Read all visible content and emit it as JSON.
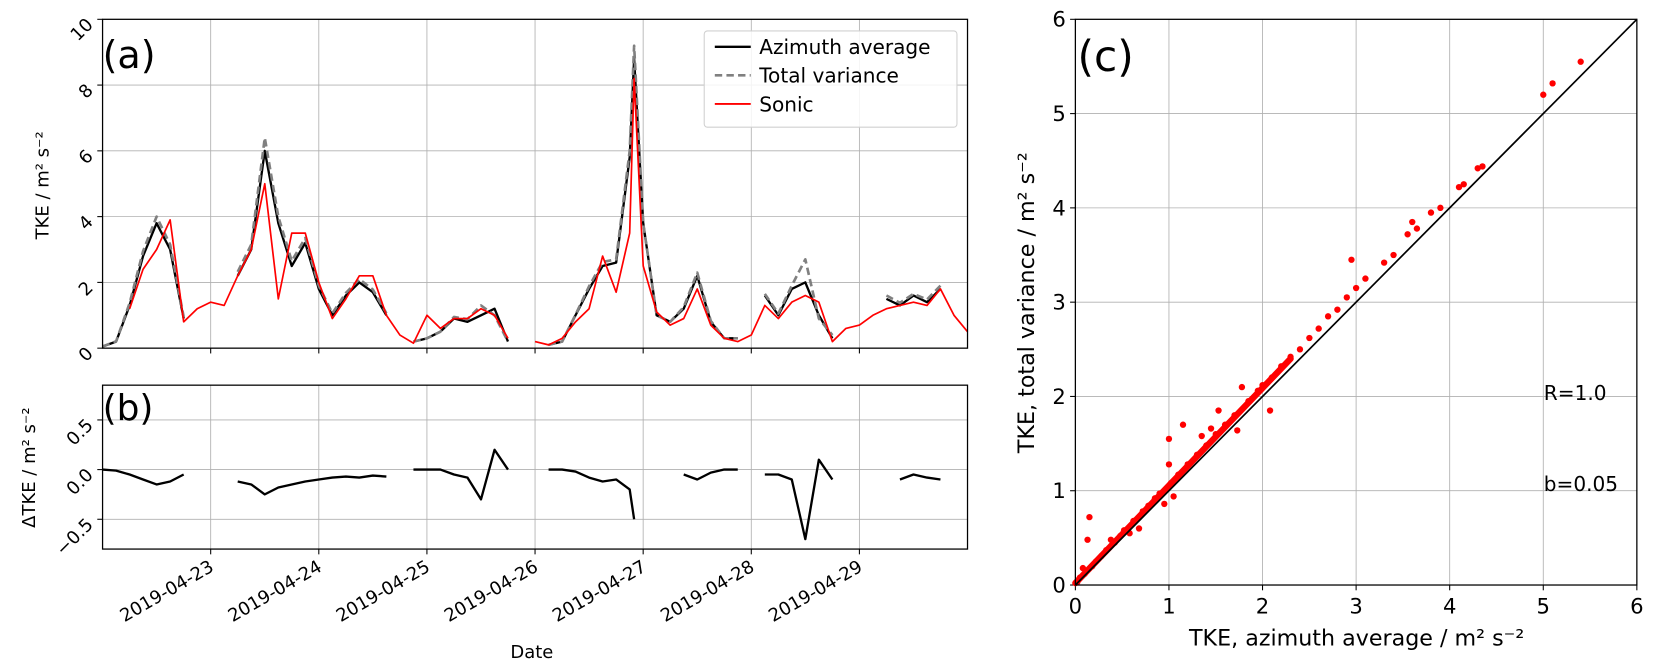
{
  "chart_data": [
    {
      "panel": "(a)",
      "type": "line",
      "ylabel": "TKE / m² s⁻²",
      "ylim": [
        0,
        10
      ],
      "yticks": [
        "0",
        "2",
        "4",
        "6",
        "8",
        "10"
      ],
      "xlim": [
        "2019-04-22T00:00",
        "2019-04-30T00:00"
      ],
      "grid": true,
      "legend_position": "top-right",
      "x": [
        "2019-04-22T00:00",
        "2019-04-22T03:00",
        "2019-04-22T06:00",
        "2019-04-22T09:00",
        "2019-04-22T12:00",
        "2019-04-22T15:00",
        "2019-04-22T18:00",
        "2019-04-22T21:00",
        "2019-04-23T00:00",
        "2019-04-23T03:00",
        "2019-04-23T06:00",
        "2019-04-23T09:00",
        "2019-04-23T12:00",
        "2019-04-23T15:00",
        "2019-04-23T18:00",
        "2019-04-23T21:00",
        "2019-04-24T00:00",
        "2019-04-24T03:00",
        "2019-04-24T06:00",
        "2019-04-24T09:00",
        "2019-04-24T12:00",
        "2019-04-24T15:00",
        "2019-04-24T18:00",
        "2019-04-24T21:00",
        "2019-04-25T00:00",
        "2019-04-25T03:00",
        "2019-04-25T06:00",
        "2019-04-25T09:00",
        "2019-04-25T12:00",
        "2019-04-25T15:00",
        "2019-04-25T18:00",
        "2019-04-25T21:00",
        "2019-04-26T00:00",
        "2019-04-26T03:00",
        "2019-04-26T06:00",
        "2019-04-26T09:00",
        "2019-04-26T12:00",
        "2019-04-26T15:00",
        "2019-04-26T18:00",
        "2019-04-26T21:00",
        "2019-04-26T22:00",
        "2019-04-27T00:00",
        "2019-04-27T03:00",
        "2019-04-27T06:00",
        "2019-04-27T09:00",
        "2019-04-27T12:00",
        "2019-04-27T15:00",
        "2019-04-27T18:00",
        "2019-04-27T21:00",
        "2019-04-28T00:00",
        "2019-04-28T03:00",
        "2019-04-28T06:00",
        "2019-04-28T09:00",
        "2019-04-28T12:00",
        "2019-04-28T15:00",
        "2019-04-28T18:00",
        "2019-04-28T21:00",
        "2019-04-29T00:00",
        "2019-04-29T03:00",
        "2019-04-29T06:00",
        "2019-04-29T09:00",
        "2019-04-29T12:00",
        "2019-04-29T15:00",
        "2019-04-29T18:00",
        "2019-04-29T21:00",
        "2019-04-30T00:00"
      ],
      "series": [
        {
          "name": "Azimuth average",
          "color": "#000000",
          "style": "solid",
          "values": [
            0.05,
            0.2,
            1.3,
            2.8,
            3.8,
            3.0,
            0.9,
            null,
            null,
            null,
            2.2,
            3.0,
            6.0,
            3.8,
            2.5,
            3.2,
            1.8,
            1.0,
            1.6,
            2.0,
            1.7,
            1.0,
            null,
            0.2,
            0.3,
            0.5,
            0.9,
            0.8,
            1.0,
            1.2,
            0.2,
            null,
            null,
            0.1,
            0.2,
            1.0,
            1.8,
            2.5,
            2.6,
            5.8,
            8.8,
            3.8,
            1.0,
            0.8,
            1.2,
            2.2,
            0.8,
            0.3,
            0.3,
            null,
            1.6,
            1.0,
            1.8,
            2.0,
            1.0,
            0.3,
            null,
            null,
            null,
            1.5,
            1.3,
            1.6,
            1.4,
            1.8,
            null,
            null
          ]
        },
        {
          "name": "Total variance",
          "color": "#808080",
          "style": "dashed",
          "values": [
            0.05,
            0.21,
            1.37,
            2.95,
            4.0,
            3.15,
            0.95,
            null,
            null,
            null,
            2.32,
            3.15,
            6.4,
            4.0,
            2.65,
            3.35,
            1.9,
            1.06,
            1.68,
            2.1,
            1.78,
            1.06,
            null,
            0.2,
            0.3,
            0.5,
            0.95,
            0.88,
            1.3,
            1.0,
            0.2,
            null,
            null,
            0.1,
            0.2,
            1.02,
            1.88,
            2.62,
            2.7,
            6.0,
            9.2,
            3.8,
            1.0,
            0.8,
            1.25,
            2.3,
            0.83,
            0.3,
            0.3,
            null,
            1.65,
            1.05,
            1.9,
            2.7,
            0.9,
            0.4,
            null,
            null,
            null,
            1.6,
            1.38,
            1.65,
            1.48,
            1.9,
            null,
            null
          ]
        },
        {
          "name": "Sonic",
          "color": "#ff0000",
          "style": "solid",
          "values": [
            null,
            null,
            1.2,
            2.4,
            3.0,
            3.9,
            0.8,
            1.2,
            1.4,
            1.3,
            2.2,
            3.0,
            5.0,
            1.5,
            3.5,
            3.5,
            2.0,
            0.9,
            1.5,
            2.2,
            2.2,
            1.0,
            0.4,
            0.15,
            1.0,
            0.6,
            0.9,
            0.9,
            1.2,
            1.0,
            0.3,
            null,
            0.2,
            0.1,
            0.3,
            0.8,
            1.2,
            2.8,
            1.7,
            3.5,
            8.2,
            2.5,
            1.1,
            0.7,
            0.9,
            1.8,
            0.7,
            0.3,
            0.2,
            0.4,
            1.3,
            0.9,
            1.4,
            1.6,
            1.4,
            0.2,
            0.6,
            0.7,
            1.0,
            1.2,
            1.3,
            1.4,
            1.3,
            1.8,
            1.0,
            0.5
          ]
        }
      ]
    },
    {
      "panel": "(b)",
      "type": "line",
      "ylabel": "ΔTKE / m² s⁻²",
      "xlabel": "Date",
      "ylim": [
        -0.8,
        0.85
      ],
      "yticks": [
        "−0.5",
        "0.0",
        "0.5"
      ],
      "xticks": [
        "2019-04-23",
        "2019-04-24",
        "2019-04-25",
        "2019-04-26",
        "2019-04-27",
        "2019-04-28",
        "2019-04-29"
      ],
      "grid": true,
      "series": [
        {
          "color": "#000000",
          "values": [
            0.0,
            -0.01,
            -0.05,
            -0.1,
            -0.15,
            -0.12,
            -0.05,
            null,
            null,
            null,
            -0.12,
            -0.15,
            -0.25,
            -0.18,
            -0.15,
            -0.12,
            -0.1,
            -0.08,
            -0.07,
            -0.08,
            -0.06,
            -0.07,
            null,
            0.0,
            0.0,
            0.0,
            -0.05,
            -0.08,
            -0.3,
            0.2,
            0.0,
            null,
            null,
            0.0,
            0.0,
            -0.02,
            -0.08,
            -0.12,
            -0.1,
            -0.2,
            -0.5,
            null,
            null,
            null,
            -0.05,
            -0.1,
            -0.03,
            0.0,
            0.0,
            null,
            -0.05,
            -0.05,
            -0.1,
            -0.7,
            0.1,
            -0.1,
            null,
            null,
            null,
            null,
            -0.1,
            -0.05,
            -0.08,
            -0.1,
            null,
            null
          ]
        }
      ]
    },
    {
      "panel": "(c)",
      "type": "scatter",
      "xlabel": "TKE, azimuth average / m² s⁻²",
      "ylabel": "TKE, total variance / m² s⁻²",
      "xlim": [
        0,
        6
      ],
      "ylim": [
        0,
        6
      ],
      "xticks": [
        "0",
        "1",
        "2",
        "3",
        "4",
        "5",
        "6"
      ],
      "yticks": [
        "0",
        "1",
        "2",
        "3",
        "4",
        "5",
        "6"
      ],
      "grid": true,
      "point_color": "#ff0000",
      "reference_line": "1:1",
      "annotations": [
        "R=1.0",
        "b=0.05"
      ],
      "points": [
        [
          0.02,
          0.03
        ],
        [
          0.05,
          0.08
        ],
        [
          0.08,
          0.18
        ],
        [
          0.1,
          0.12
        ],
        [
          0.13,
          0.48
        ],
        [
          0.15,
          0.72
        ],
        [
          0.18,
          0.2
        ],
        [
          0.22,
          0.25
        ],
        [
          0.28,
          0.31
        ],
        [
          0.33,
          0.37
        ],
        [
          0.38,
          0.48
        ],
        [
          0.42,
          0.45
        ],
        [
          0.48,
          0.52
        ],
        [
          0.52,
          0.58
        ],
        [
          0.58,
          0.55
        ],
        [
          0.62,
          0.68
        ],
        [
          0.68,
          0.6
        ],
        [
          0.72,
          0.78
        ],
        [
          0.78,
          0.84
        ],
        [
          0.85,
          0.92
        ],
        [
          0.9,
          0.97
        ],
        [
          0.95,
          0.86
        ],
        [
          1.0,
          1.55
        ],
        [
          1.0,
          1.28
        ],
        [
          1.02,
          1.08
        ],
        [
          1.05,
          0.94
        ],
        [
          1.1,
          1.17
        ],
        [
          1.15,
          1.7
        ],
        [
          1.2,
          1.28
        ],
        [
          1.3,
          1.38
        ],
        [
          1.35,
          1.58
        ],
        [
          1.4,
          1.48
        ],
        [
          1.45,
          1.66
        ],
        [
          1.5,
          1.6
        ],
        [
          1.53,
          1.85
        ],
        [
          1.6,
          1.7
        ],
        [
          1.7,
          1.8
        ],
        [
          1.73,
          1.64
        ],
        [
          1.78,
          2.1
        ],
        [
          1.85,
          1.95
        ],
        [
          1.95,
          2.06
        ],
        [
          2.0,
          2.12
        ],
        [
          2.08,
          1.85
        ],
        [
          2.1,
          2.2
        ],
        [
          2.2,
          2.32
        ],
        [
          2.3,
          2.42
        ],
        [
          2.4,
          2.5
        ],
        [
          2.5,
          2.62
        ],
        [
          2.6,
          2.72
        ],
        [
          2.7,
          2.85
        ],
        [
          2.8,
          2.92
        ],
        [
          2.9,
          3.05
        ],
        [
          2.95,
          3.45
        ],
        [
          3.0,
          3.15
        ],
        [
          3.1,
          3.25
        ],
        [
          3.3,
          3.42
        ],
        [
          3.4,
          3.5
        ],
        [
          3.55,
          3.72
        ],
        [
          3.6,
          3.85
        ],
        [
          3.65,
          3.78
        ],
        [
          3.8,
          3.95
        ],
        [
          3.9,
          4.0
        ],
        [
          4.1,
          4.22
        ],
        [
          4.15,
          4.25
        ],
        [
          4.3,
          4.42
        ],
        [
          4.35,
          4.44
        ],
        [
          5.0,
          5.2
        ],
        [
          5.1,
          5.32
        ],
        [
          5.4,
          5.55
        ]
      ]
    }
  ]
}
